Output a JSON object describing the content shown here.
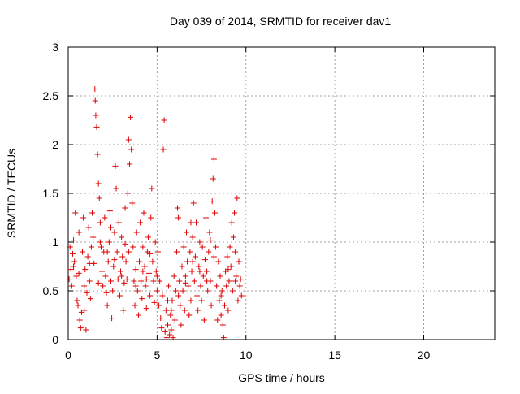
{
  "chart_data": {
    "type": "scatter",
    "title": "Day 039 of 2014, SRMTID for receiver dav1",
    "xlabel": "GPS time / hours",
    "ylabel": "SRMTID / TECUs",
    "xlim": [
      0,
      24
    ],
    "ylim": [
      0,
      3
    ],
    "xticks": [
      0,
      5,
      10,
      15,
      20
    ],
    "xtick_labels": [
      "0",
      "5",
      "10",
      "15",
      "20"
    ],
    "yticks": [
      0,
      0.5,
      1,
      1.5,
      2,
      2.5,
      3
    ],
    "ytick_labels": [
      "0",
      "0.5",
      "1",
      "1.5",
      "2",
      "2.5",
      "3"
    ],
    "grid": true,
    "marker": "+",
    "color": "#dd0000",
    "series": [
      {
        "name": "dav1",
        "points": [
          [
            0.05,
            0.62
          ],
          [
            0.1,
            0.95
          ],
          [
            0.15,
            0.72
          ],
          [
            0.2,
            0.55
          ],
          [
            0.25,
            0.88
          ],
          [
            0.3,
            1.02
          ],
          [
            0.35,
            0.8
          ],
          [
            0.4,
            1.3
          ],
          [
            0.45,
            0.65
          ],
          [
            0.5,
            0.4
          ],
          [
            0.55,
            0.35
          ],
          [
            0.6,
            1.1
          ],
          [
            0.65,
            0.2
          ],
          [
            0.7,
            0.12
          ],
          [
            0.75,
            0.28
          ],
          [
            0.8,
            0.9
          ],
          [
            0.85,
            1.25
          ],
          [
            0.9,
            0.55
          ],
          [
            0.95,
            0.72
          ],
          [
            1.0,
            0.1
          ],
          [
            1.05,
            0.48
          ],
          [
            1.1,
            0.85
          ],
          [
            1.15,
            1.15
          ],
          [
            1.2,
            0.6
          ],
          [
            1.25,
            0.42
          ],
          [
            1.3,
            0.95
          ],
          [
            1.35,
            1.3
          ],
          [
            1.4,
            1.05
          ],
          [
            1.45,
            0.78
          ],
          [
            1.5,
            2.57
          ],
          [
            1.52,
            2.45
          ],
          [
            1.55,
            2.3
          ],
          [
            1.6,
            2.18
          ],
          [
            1.65,
            1.9
          ],
          [
            1.7,
            1.6
          ],
          [
            1.75,
            1.45
          ],
          [
            1.8,
            1.2
          ],
          [
            1.85,
            0.95
          ],
          [
            1.9,
            0.7
          ],
          [
            1.95,
            0.55
          ],
          [
            2.0,
            0.9
          ],
          [
            2.05,
            1.25
          ],
          [
            2.1,
            0.65
          ],
          [
            2.15,
            0.48
          ],
          [
            2.2,
            0.35
          ],
          [
            2.25,
            0.8
          ],
          [
            2.3,
            1.0
          ],
          [
            2.35,
            1.32
          ],
          [
            2.4,
            0.6
          ],
          [
            2.45,
            0.22
          ],
          [
            2.5,
            0.5
          ],
          [
            2.55,
            0.75
          ],
          [
            2.6,
            1.1
          ],
          [
            2.65,
            1.78
          ],
          [
            2.7,
            1.55
          ],
          [
            2.75,
            0.9
          ],
          [
            2.8,
            0.62
          ],
          [
            2.85,
            1.2
          ],
          [
            2.9,
            0.45
          ],
          [
            2.95,
            0.7
          ],
          [
            3.0,
            1.05
          ],
          [
            3.05,
            0.85
          ],
          [
            3.1,
            0.3
          ],
          [
            3.15,
            0.58
          ],
          [
            3.2,
            1.35
          ],
          [
            3.25,
            0.8
          ],
          [
            3.3,
            0.62
          ],
          [
            3.35,
            1.5
          ],
          [
            3.4,
            2.05
          ],
          [
            3.45,
            1.8
          ],
          [
            3.5,
            2.28
          ],
          [
            3.55,
            1.95
          ],
          [
            3.6,
            1.4
          ],
          [
            3.65,
            0.95
          ],
          [
            3.7,
            0.6
          ],
          [
            3.75,
            0.35
          ],
          [
            3.8,
            0.72
          ],
          [
            3.85,
            1.1
          ],
          [
            3.9,
            0.5
          ],
          [
            3.95,
            0.25
          ],
          [
            4.0,
            0.8
          ],
          [
            4.05,
            1.2
          ],
          [
            4.1,
            0.6
          ],
          [
            4.15,
            0.42
          ],
          [
            4.2,
            0.95
          ],
          [
            4.25,
            1.3
          ],
          [
            4.3,
            0.75
          ],
          [
            4.35,
            0.55
          ],
          [
            4.4,
            0.32
          ],
          [
            4.45,
            0.9
          ],
          [
            4.5,
            1.05
          ],
          [
            4.55,
            0.68
          ],
          [
            4.6,
            0.45
          ],
          [
            4.65,
            1.25
          ],
          [
            4.7,
            1.55
          ],
          [
            4.75,
            0.8
          ],
          [
            4.8,
            0.6
          ],
          [
            4.85,
            0.38
          ],
          [
            4.9,
            1.0
          ],
          [
            4.95,
            0.7
          ],
          [
            5.0,
            0.5
          ],
          [
            5.05,
            0.9
          ],
          [
            5.1,
            0.35
          ],
          [
            5.15,
            0.6
          ],
          [
            5.2,
            0.22
          ],
          [
            5.25,
            0.12
          ],
          [
            5.3,
            0.45
          ],
          [
            5.35,
            1.95
          ],
          [
            5.4,
            2.25
          ],
          [
            5.45,
            0.08
          ],
          [
            5.5,
            0.3
          ],
          [
            5.55,
            0.02
          ],
          [
            5.6,
            0.15
          ],
          [
            5.65,
            0.55
          ],
          [
            5.7,
            0.05
          ],
          [
            5.75,
            0.25
          ],
          [
            5.8,
            0.1
          ],
          [
            5.85,
            0.4
          ],
          [
            5.9,
            0.02
          ],
          [
            5.95,
            0.65
          ],
          [
            6.0,
            0.2
          ],
          [
            6.05,
            0.5
          ],
          [
            6.1,
            0.9
          ],
          [
            6.15,
            1.35
          ],
          [
            6.2,
            1.25
          ],
          [
            6.25,
            0.6
          ],
          [
            6.3,
            0.35
          ],
          [
            6.35,
            0.15
          ],
          [
            6.4,
            0.75
          ],
          [
            6.45,
            0.5
          ],
          [
            6.5,
            0.95
          ],
          [
            6.55,
            0.3
          ],
          [
            6.6,
            0.65
          ],
          [
            6.65,
            1.1
          ],
          [
            6.7,
            0.8
          ],
          [
            6.75,
            0.55
          ],
          [
            6.8,
            0.25
          ],
          [
            6.85,
            0.9
          ],
          [
            6.9,
            1.2
          ],
          [
            6.95,
            0.7
          ],
          [
            7.0,
            1.05
          ],
          [
            7.05,
            1.4
          ],
          [
            7.1,
            0.6
          ],
          [
            7.15,
            0.85
          ],
          [
            7.2,
            1.2
          ],
          [
            7.25,
            0.45
          ],
          [
            7.3,
            0.3
          ],
          [
            7.35,
            0.75
          ],
          [
            7.4,
            1.0
          ],
          [
            7.45,
            0.55
          ],
          [
            7.5,
            0.4
          ],
          [
            7.55,
            0.95
          ],
          [
            7.6,
            0.65
          ],
          [
            7.65,
            0.2
          ],
          [
            7.7,
            0.82
          ],
          [
            7.75,
            1.25
          ],
          [
            7.8,
            0.7
          ],
          [
            7.85,
            0.5
          ],
          [
            7.9,
            0.9
          ],
          [
            7.95,
            1.1
          ],
          [
            8.0,
            0.6
          ],
          [
            8.05,
            0.35
          ],
          [
            8.1,
            1.42
          ],
          [
            8.15,
            1.65
          ],
          [
            8.2,
            1.85
          ],
          [
            8.25,
            1.3
          ],
          [
            8.3,
            0.95
          ],
          [
            8.35,
            0.55
          ],
          [
            8.4,
            0.2
          ],
          [
            8.45,
            0.8
          ],
          [
            8.5,
            0.4
          ],
          [
            8.55,
            0.65
          ],
          [
            8.6,
            0.25
          ],
          [
            8.65,
            0.5
          ],
          [
            8.7,
            0.15
          ],
          [
            8.75,
            0.02
          ],
          [
            8.8,
            0.35
          ],
          [
            8.85,
            0.7
          ],
          [
            8.9,
            0.55
          ],
          [
            8.95,
            0.85
          ],
          [
            9.0,
            0.3
          ],
          [
            9.05,
            0.6
          ],
          [
            9.1,
            0.95
          ],
          [
            9.15,
            0.75
          ],
          [
            9.2,
            1.2
          ],
          [
            9.25,
            0.5
          ],
          [
            9.3,
            1.05
          ],
          [
            9.35,
            1.3
          ],
          [
            9.4,
            0.9
          ],
          [
            9.45,
            0.65
          ],
          [
            9.5,
            1.45
          ],
          [
            9.55,
            0.4
          ],
          [
            9.6,
            0.8
          ],
          [
            9.65,
            0.55
          ],
          [
            9.7,
            0.62
          ],
          [
            9.75,
            0.45
          ],
          [
            0.3,
            0.75
          ],
          [
            0.6,
            0.68
          ],
          [
            1.2,
            0.78
          ],
          [
            1.8,
            1.0
          ],
          [
            2.2,
            0.9
          ],
          [
            2.6,
            0.82
          ],
          [
            3.0,
            0.65
          ],
          [
            3.4,
            0.9
          ],
          [
            3.8,
            0.55
          ],
          [
            4.2,
            0.7
          ],
          [
            4.6,
            0.88
          ],
          [
            5.0,
            0.65
          ],
          [
            5.6,
            0.4
          ],
          [
            6.2,
            0.45
          ],
          [
            6.6,
            0.58
          ],
          [
            7.0,
            0.8
          ],
          [
            7.4,
            0.7
          ],
          [
            7.8,
            0.6
          ],
          [
            8.2,
            0.85
          ],
          [
            8.6,
            0.45
          ],
          [
            9.0,
            0.72
          ],
          [
            9.4,
            0.6
          ],
          [
            0.9,
            0.3
          ],
          [
            1.7,
            0.58
          ],
          [
            2.4,
            1.15
          ],
          [
            3.2,
            0.98
          ],
          [
            4.4,
            0.62
          ],
          [
            5.8,
            0.3
          ],
          [
            6.9,
            0.4
          ],
          [
            8.0,
            1.02
          ]
        ]
      }
    ]
  }
}
